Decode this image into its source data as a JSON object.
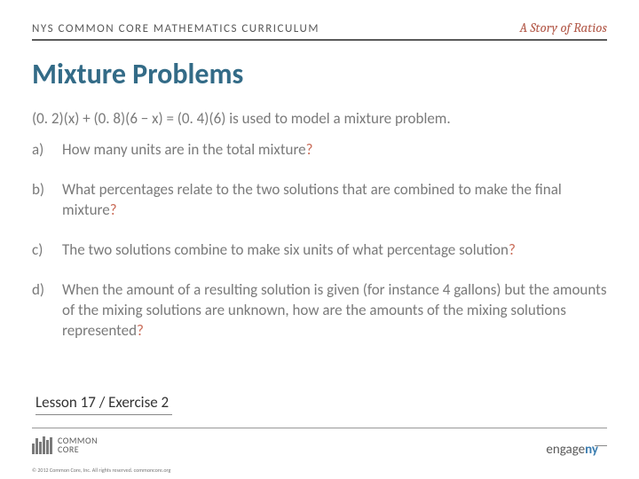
{
  "header": {
    "left": "NYS COMMON CORE MATHEMATICS CURRICULUM",
    "right": "A Story of Ratios"
  },
  "title": "Mixture Problems",
  "equation": {
    "prefix": "(0. 2)(x) + (0. 8)(6 − x) = (0. 4)(6)",
    "suffix": " is used to model a mixture problem."
  },
  "questions": [
    {
      "letter": "a)",
      "text": "How many units are in the total mixture",
      "mark": "?"
    },
    {
      "letter": "b)",
      "text": "What percentages relate to the two solutions that are combined to make the final mixture",
      "mark": "?"
    },
    {
      "letter": "c)",
      "text": "The two solutions combine to make six units of what percentage solution",
      "mark": "?"
    },
    {
      "letter": "d)",
      "text": "When the amount of a resulting solution is given (for instance 4 gallons) but the amounts of the mixing solutions are unknown, how are the amounts of the mixing solutions represented",
      "mark": "?"
    }
  ],
  "lesson": "Lesson 17 / Exercise 2",
  "footer": {
    "cc_line1": "COMMON",
    "cc_line2": "CORE",
    "engage_prefix": "engage",
    "engage_ny": "ny",
    "copyright": "© 2012 Common Core, Inc. All rights reserved. commoncore.org"
  },
  "colors": {
    "header_text": "#5a5a5a",
    "header_accent": "#b35a4a",
    "title": "#336b87",
    "body_text": "#7a7a7a",
    "question_mark": "#c96a56",
    "engage_ny": "#3b7db0"
  },
  "cc_bars": [
    12,
    18,
    14,
    20,
    16,
    19
  ]
}
